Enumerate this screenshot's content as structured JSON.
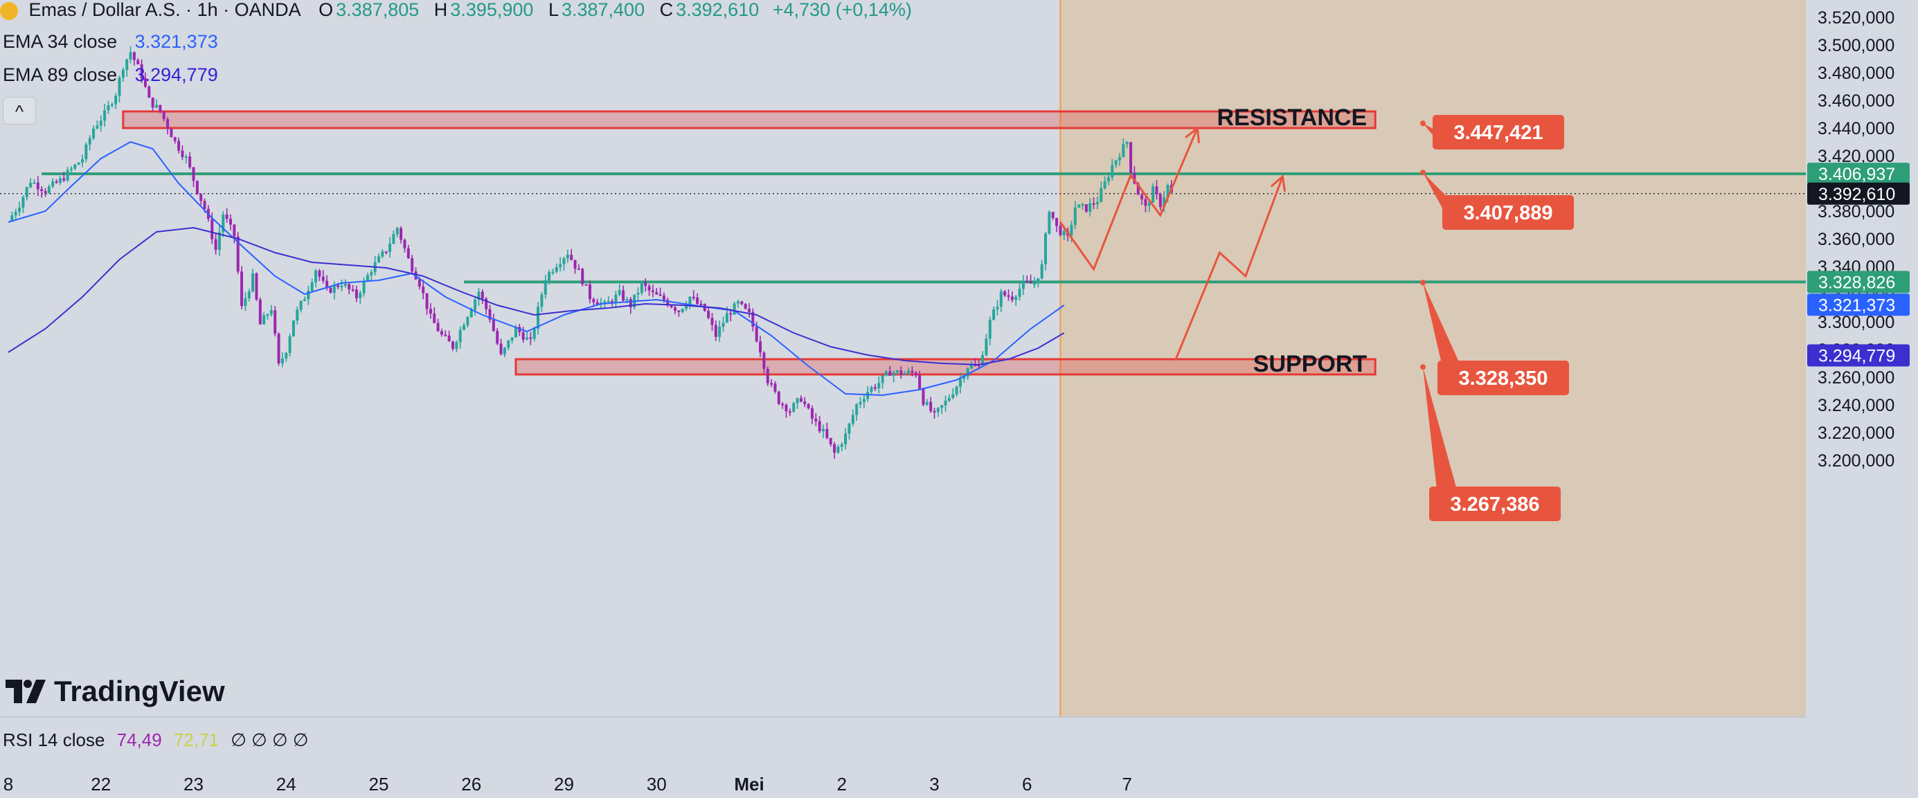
{
  "header": {
    "symbol": "Emas / Dollar A.S. · 1h · OANDA",
    "o_label": "O",
    "o_value": "3.387,805",
    "h_label": "H",
    "h_value": "3.395,900",
    "l_label": "L",
    "l_value": "3.387,400",
    "c_label": "C",
    "c_value": "3.392,610",
    "change": "+4,730 (+0,14%)"
  },
  "indicators": {
    "ema34_label": "EMA 34 close",
    "ema34_value": "3.321,373",
    "ema89_label": "EMA 89 close",
    "ema89_value": "3.294,779",
    "collapse_glyph": "^"
  },
  "logo_text": "TradingView",
  "rsi": {
    "label": "RSI 14 close",
    "value1": "74,49",
    "value2": "72,71",
    "placeholders": "∅ ∅ ∅ ∅"
  },
  "colors": {
    "up": "#26a69a",
    "down": "#9c27b0",
    "ema34": "#2962ff",
    "ema89": "#3b2fd0",
    "zone": "#e53935",
    "level": "#2e9e78",
    "callout": "#e8553f",
    "forecast_bg": "#d9c9b7"
  },
  "chart_data": {
    "type": "candlestick",
    "title": "Emas / Dollar A.S. · 1h · OANDA",
    "y_axis_ticks": [
      "3.520,000",
      "3.500,000",
      "3.480,000",
      "3.460,000",
      "3.440,000",
      "3.420,000",
      "3.400,000",
      "3.380,000",
      "3.360,000",
      "3.340,000",
      "3.320,000",
      "3.300,000",
      "3.280,000",
      "3.260,000",
      "3.240,000",
      "3.220,000",
      "3.200,000"
    ],
    "y_axis_tick_values": [
      3520,
      3500,
      3480,
      3460,
      3440,
      3420,
      3400,
      3380,
      3360,
      3340,
      3320,
      3300,
      3280,
      3260,
      3240,
      3220,
      3200
    ],
    "ylim": [
      3189,
      3527
    ],
    "x_axis_ticks": [
      "8",
      "22",
      "23",
      "24",
      "25",
      "26",
      "29",
      "30",
      "Mei",
      "2",
      "3",
      "6",
      "7"
    ],
    "x_axis_tick_index": [
      0,
      25,
      50,
      75,
      100,
      125,
      150,
      175,
      200,
      225,
      250,
      275,
      302
    ],
    "close_path": [
      [
        0,
        3373
      ],
      [
        3,
        3385
      ],
      [
        6,
        3402
      ],
      [
        10,
        3395
      ],
      [
        14,
        3402
      ],
      [
        17,
        3410
      ],
      [
        20,
        3418
      ],
      [
        23,
        3440
      ],
      [
        26,
        3450
      ],
      [
        29,
        3465
      ],
      [
        31,
        3485
      ],
      [
        33,
        3495
      ],
      [
        36,
        3478
      ],
      [
        38,
        3460
      ],
      [
        41,
        3452
      ],
      [
        45,
        3430
      ],
      [
        48,
        3418
      ],
      [
        51,
        3395
      ],
      [
        53,
        3382
      ],
      [
        56,
        3352
      ],
      [
        58,
        3378
      ],
      [
        61,
        3362
      ],
      [
        63,
        3310
      ],
      [
        66,
        3332
      ],
      [
        68,
        3298
      ],
      [
        71,
        3310
      ],
      [
        73,
        3268
      ],
      [
        75,
        3280
      ],
      [
        77,
        3302
      ],
      [
        80,
        3318
      ],
      [
        83,
        3338
      ],
      [
        86,
        3322
      ],
      [
        90,
        3328
      ],
      [
        94,
        3318
      ],
      [
        98,
        3338
      ],
      [
        102,
        3352
      ],
      [
        105,
        3368
      ],
      [
        108,
        3345
      ],
      [
        111,
        3328
      ],
      [
        114,
        3303
      ],
      [
        117,
        3290
      ],
      [
        120,
        3282
      ],
      [
        123,
        3300
      ],
      [
        127,
        3322
      ],
      [
        130,
        3303
      ],
      [
        133,
        3275
      ],
      [
        137,
        3295
      ],
      [
        141,
        3285
      ],
      [
        145,
        3332
      ],
      [
        148,
        3342
      ],
      [
        151,
        3350
      ],
      [
        154,
        3336
      ],
      [
        157,
        3318
      ],
      [
        161,
        3312
      ],
      [
        165,
        3320
      ],
      [
        168,
        3312
      ],
      [
        171,
        3327
      ],
      [
        174,
        3320
      ],
      [
        177,
        3316
      ],
      [
        181,
        3308
      ],
      [
        184,
        3318
      ],
      [
        188,
        3308
      ],
      [
        191,
        3290
      ],
      [
        194,
        3305
      ],
      [
        197,
        3313
      ],
      [
        200,
        3305
      ],
      [
        203,
        3280
      ],
      [
        205,
        3258
      ],
      [
        208,
        3243
      ],
      [
        211,
        3236
      ],
      [
        214,
        3245
      ],
      [
        217,
        3230
      ],
      [
        220,
        3220
      ],
      [
        223,
        3205
      ],
      [
        226,
        3218
      ],
      [
        229,
        3240
      ],
      [
        232,
        3250
      ],
      [
        235,
        3256
      ],
      [
        238,
        3264
      ],
      [
        241,
        3263
      ],
      [
        245,
        3263
      ],
      [
        247,
        3243
      ],
      [
        250,
        3232
      ],
      [
        253,
        3242
      ],
      [
        256,
        3254
      ],
      [
        259,
        3268
      ],
      [
        262,
        3268
      ],
      [
        265,
        3300
      ],
      [
        268,
        3320
      ],
      [
        271,
        3318
      ],
      [
        274,
        3327
      ],
      [
        277,
        3328
      ],
      [
        279,
        3340
      ],
      [
        281,
        3382
      ],
      [
        283,
        3368
      ],
      [
        286,
        3360
      ],
      [
        288,
        3383
      ],
      [
        291,
        3382
      ],
      [
        294,
        3388
      ],
      [
        296,
        3400
      ],
      [
        298,
        3413
      ],
      [
        300,
        3422
      ],
      [
        302,
        3430
      ],
      [
        303,
        3410
      ],
      [
        305,
        3393
      ],
      [
        307,
        3382
      ],
      [
        309,
        3395
      ],
      [
        311,
        3385
      ],
      [
        313,
        3398
      ],
      [
        314,
        3392.6
      ]
    ],
    "ema34_path": [
      [
        0,
        3372
      ],
      [
        10,
        3380
      ],
      [
        17,
        3398
      ],
      [
        25,
        3418
      ],
      [
        33,
        3430
      ],
      [
        39,
        3425
      ],
      [
        46,
        3400
      ],
      [
        55,
        3375
      ],
      [
        63,
        3355
      ],
      [
        72,
        3333
      ],
      [
        80,
        3320
      ],
      [
        90,
        3328
      ],
      [
        100,
        3330
      ],
      [
        109,
        3335
      ],
      [
        118,
        3318
      ],
      [
        128,
        3305
      ],
      [
        140,
        3293
      ],
      [
        150,
        3305
      ],
      [
        160,
        3313
      ],
      [
        175,
        3316
      ],
      [
        185,
        3312
      ],
      [
        196,
        3308
      ],
      [
        206,
        3290
      ],
      [
        216,
        3268
      ],
      [
        226,
        3248
      ],
      [
        236,
        3247
      ],
      [
        246,
        3251
      ],
      [
        256,
        3258
      ],
      [
        266,
        3272
      ],
      [
        276,
        3295
      ],
      [
        285,
        3312
      ]
    ],
    "ema89_path": [
      [
        0,
        3278
      ],
      [
        10,
        3295
      ],
      [
        20,
        3318
      ],
      [
        30,
        3345
      ],
      [
        40,
        3365
      ],
      [
        50,
        3368
      ],
      [
        62,
        3360
      ],
      [
        72,
        3350
      ],
      [
        82,
        3343
      ],
      [
        92,
        3341
      ],
      [
        102,
        3339
      ],
      [
        112,
        3333
      ],
      [
        122,
        3322
      ],
      [
        132,
        3312
      ],
      [
        142,
        3305
      ],
      [
        152,
        3308
      ],
      [
        162,
        3310
      ],
      [
        172,
        3313
      ],
      [
        182,
        3312
      ],
      [
        192,
        3310
      ],
      [
        202,
        3305
      ],
      [
        212,
        3292
      ],
      [
        222,
        3282
      ],
      [
        232,
        3276
      ],
      [
        242,
        3272
      ],
      [
        252,
        3270
      ],
      [
        262,
        3269
      ],
      [
        270,
        3273
      ],
      [
        278,
        3281
      ],
      [
        285,
        3292
      ]
    ],
    "levels": [
      {
        "value": 3406.937,
        "label": "3.406,937"
      },
      {
        "value": 3328.826,
        "label": "3.328,826"
      }
    ],
    "current_price": {
      "value": 3392.61,
      "label": "3.392,610"
    },
    "ema34_last": {
      "value": 3321.373,
      "label": "3.321,373"
    },
    "ema89_last": {
      "value": 3294.779,
      "label": "3.294,779"
    },
    "zones": [
      {
        "name": "RESISTANCE",
        "from": 3440,
        "to": 3452,
        "start_index": 31,
        "end_index": 369
      },
      {
        "name": "SUPPORT",
        "from": 3262,
        "to": 3273,
        "start_index": 137,
        "end_index": 369
      }
    ],
    "callouts": [
      {
        "label": "3.447,421",
        "value": 3447.421
      },
      {
        "label": "3.407,889",
        "value": 3407.889
      },
      {
        "label": "3.328,350",
        "value": 3328.35
      },
      {
        "label": "3.267,386",
        "value": 3267.386
      }
    ],
    "forecast_paths": [
      [
        [
          284,
          3372
        ],
        [
          293,
          3338
        ],
        [
          303,
          3406
        ],
        [
          311,
          3377
        ],
        [
          321,
          3440
        ]
      ],
      [
        [
          315,
          3272
        ],
        [
          327,
          3350
        ],
        [
          334,
          3333
        ],
        [
          344,
          3405
        ]
      ]
    ],
    "forecast_start_index": 284,
    "last_index": 314
  }
}
